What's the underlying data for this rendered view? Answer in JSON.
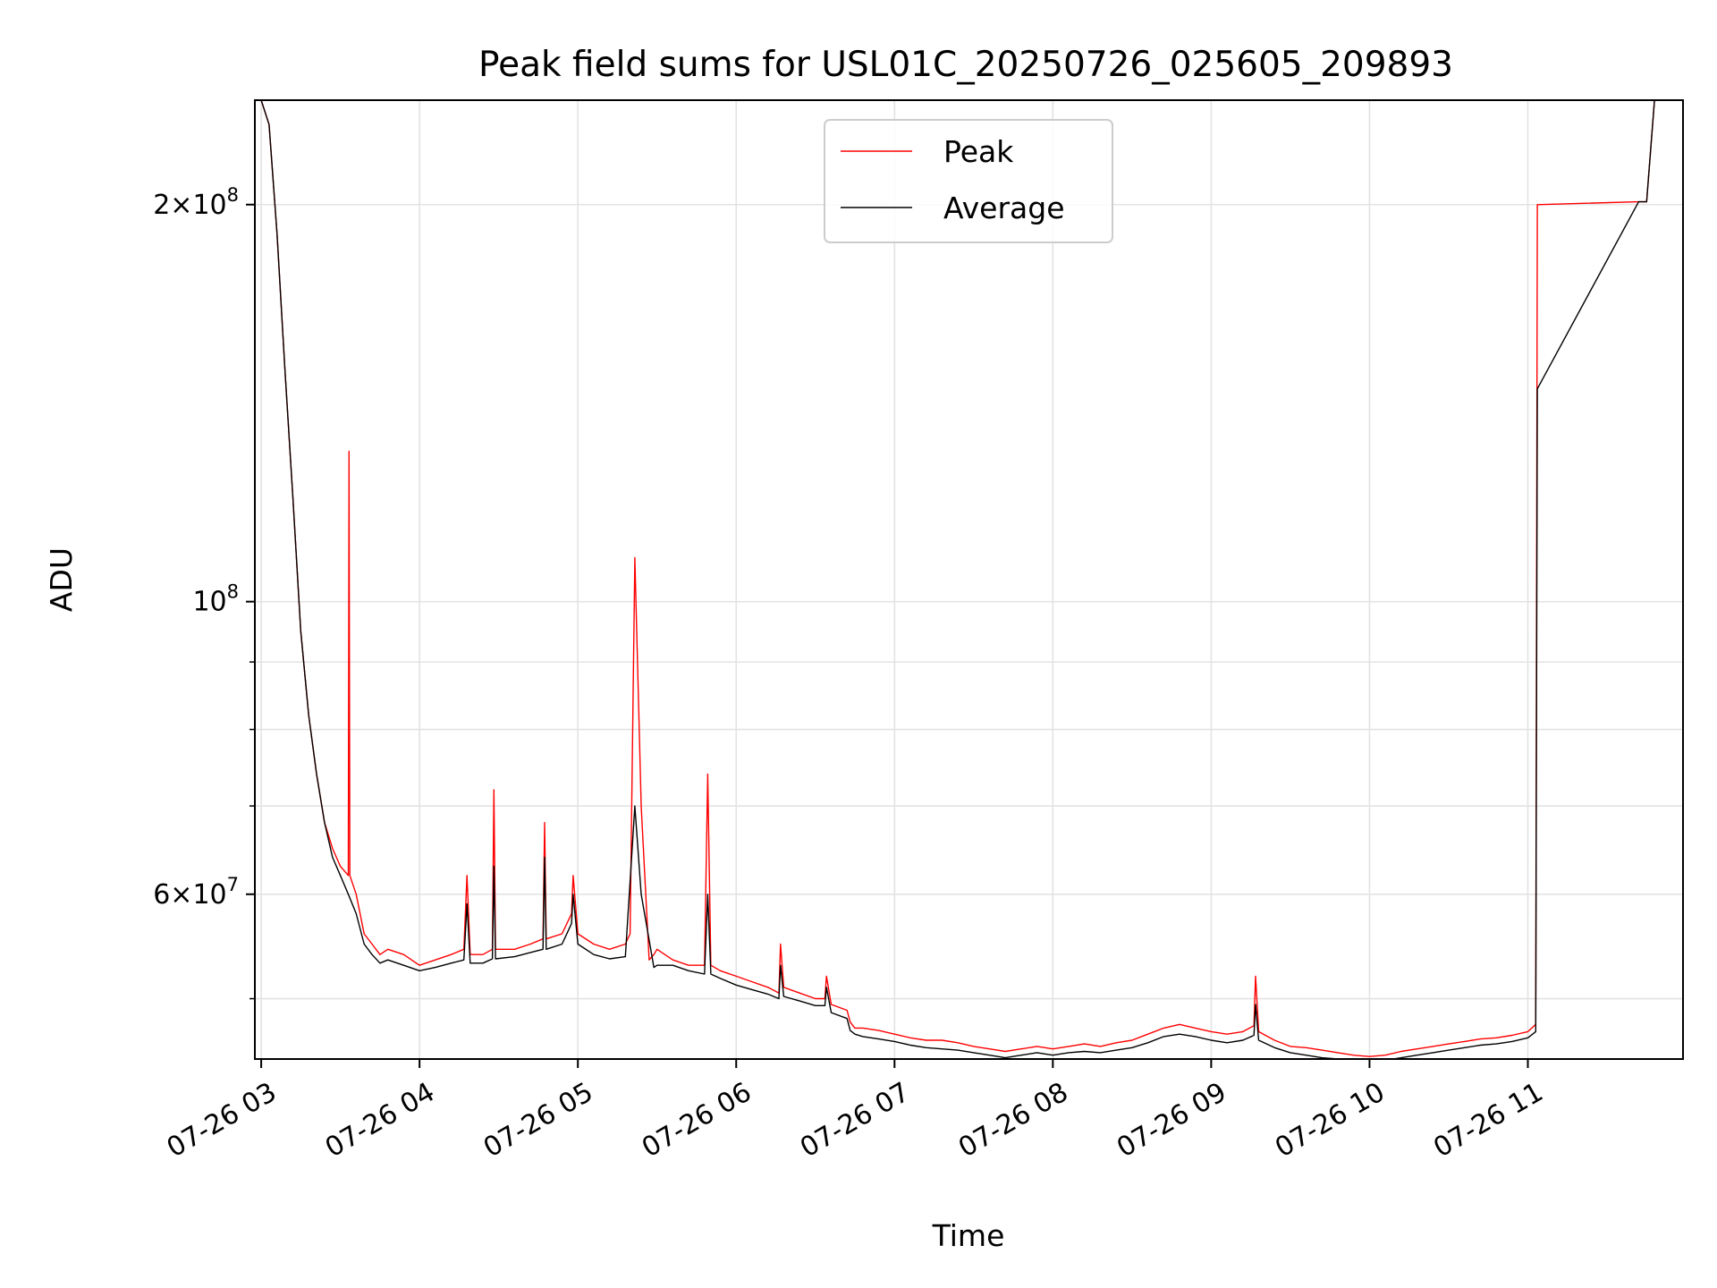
{
  "chart_data": {
    "type": "line",
    "title": "Peak field sums for USL01C_20250726_025605_209893",
    "xlabel": "Time",
    "ylabel": "ADU",
    "x_unit": "hours (clock time on 2025-07-26)",
    "xlim": [
      2.96,
      11.98
    ],
    "ylim": [
      45000000,
      240000000
    ],
    "yscale": "log",
    "grid": true,
    "legend": {
      "position": "upper-center",
      "entries": [
        "Peak",
        "Average"
      ]
    },
    "x_ticks": [
      {
        "value": 3,
        "label": "07-26 03"
      },
      {
        "value": 4,
        "label": "07-26 04"
      },
      {
        "value": 5,
        "label": "07-26 05"
      },
      {
        "value": 6,
        "label": "07-26 06"
      },
      {
        "value": 7,
        "label": "07-26 07"
      },
      {
        "value": 8,
        "label": "07-26 08"
      },
      {
        "value": 9,
        "label": "07-26 09"
      },
      {
        "value": 10,
        "label": "07-26 10"
      },
      {
        "value": 11,
        "label": "07-26 11"
      }
    ],
    "y_major_ticks": [
      {
        "value": 60000000,
        "mantissa": "6",
        "times": "×",
        "base": "10",
        "exp": "7"
      },
      {
        "value": 100000000,
        "mantissa": "",
        "times": "",
        "base": "10",
        "exp": "8"
      },
      {
        "value": 200000000,
        "mantissa": "2",
        "times": "×",
        "base": "10",
        "exp": "8"
      }
    ],
    "y_minor_ticks": [
      50000000,
      70000000,
      80000000,
      90000000,
      300000000
    ],
    "series": [
      {
        "name": "Peak",
        "color": "#ff0000",
        "x": [
          3.0,
          3.05,
          3.1,
          3.15,
          3.2,
          3.25,
          3.3,
          3.35,
          3.4,
          3.45,
          3.5,
          3.55,
          3.555,
          3.56,
          3.6,
          3.65,
          3.7,
          3.75,
          3.8,
          3.9,
          4.0,
          4.1,
          4.2,
          4.28,
          4.3,
          4.32,
          4.4,
          4.46,
          4.47,
          4.48,
          4.6,
          4.7,
          4.78,
          4.79,
          4.8,
          4.9,
          4.96,
          4.97,
          5.0,
          5.1,
          5.2,
          5.3,
          5.33,
          5.36,
          5.4,
          5.45,
          5.48,
          5.5,
          5.6,
          5.7,
          5.8,
          5.82,
          5.84,
          5.9,
          6.0,
          6.1,
          6.2,
          6.27,
          6.28,
          6.3,
          6.4,
          6.5,
          6.56,
          6.57,
          6.6,
          6.7,
          6.72,
          6.75,
          6.8,
          6.9,
          7.0,
          7.1,
          7.2,
          7.3,
          7.4,
          7.5,
          7.6,
          7.7,
          7.8,
          7.9,
          8.0,
          8.1,
          8.2,
          8.3,
          8.4,
          8.5,
          8.6,
          8.7,
          8.8,
          8.9,
          9.0,
          9.1,
          9.2,
          9.27,
          9.28,
          9.3,
          9.4,
          9.5,
          9.6,
          9.7,
          9.8,
          9.9,
          10.0,
          10.1,
          10.2,
          10.3,
          10.4,
          10.5,
          10.6,
          10.7,
          10.8,
          10.9,
          11.0,
          11.05,
          11.06,
          11.7,
          11.75,
          11.8,
          11.85
        ],
        "values": [
          240000000,
          230000000,
          190000000,
          150000000,
          120000000,
          95000000,
          82000000,
          74000000,
          68000000,
          65000000,
          63000000,
          62000000,
          130000000,
          62000000,
          60000000,
          56000000,
          55000000,
          54000000,
          54500000,
          54000000,
          53000000,
          53500000,
          54000000,
          54500000,
          62000000,
          54000000,
          54000000,
          54500000,
          72000000,
          54500000,
          54500000,
          55000000,
          55500000,
          68000000,
          55500000,
          56000000,
          58000000,
          62000000,
          56000000,
          55000000,
          54500000,
          55000000,
          56000000,
          108000000,
          70000000,
          53500000,
          54000000,
          54500000,
          53500000,
          53000000,
          53000000,
          74000000,
          53000000,
          52500000,
          52000000,
          51500000,
          51000000,
          50500000,
          55000000,
          51000000,
          50500000,
          50000000,
          50000000,
          52000000,
          49500000,
          49000000,
          48000000,
          47500000,
          47500000,
          47300000,
          47000000,
          46700000,
          46500000,
          46500000,
          46300000,
          46000000,
          45800000,
          45600000,
          45800000,
          46000000,
          45800000,
          46000000,
          46200000,
          46000000,
          46300000,
          46500000,
          47000000,
          47500000,
          47800000,
          47500000,
          47200000,
          47000000,
          47200000,
          47700000,
          52000000,
          47200000,
          46500000,
          46000000,
          45900000,
          45700000,
          45500000,
          45300000,
          45200000,
          45300000,
          45600000,
          45800000,
          46000000,
          46200000,
          46400000,
          46600000,
          46700000,
          46900000,
          47200000,
          47800000,
          200000000,
          201000000,
          201000000,
          240000000,
          240000000
        ]
      },
      {
        "name": "Average",
        "color": "#000000",
        "x": [
          3.0,
          3.05,
          3.1,
          3.15,
          3.2,
          3.25,
          3.3,
          3.35,
          3.4,
          3.45,
          3.5,
          3.55,
          3.6,
          3.65,
          3.7,
          3.75,
          3.8,
          3.9,
          4.0,
          4.1,
          4.2,
          4.28,
          4.3,
          4.32,
          4.4,
          4.46,
          4.47,
          4.48,
          4.6,
          4.7,
          4.78,
          4.79,
          4.8,
          4.9,
          4.96,
          4.97,
          5.0,
          5.1,
          5.2,
          5.3,
          5.36,
          5.4,
          5.48,
          5.5,
          5.6,
          5.7,
          5.8,
          5.82,
          5.84,
          5.9,
          6.0,
          6.1,
          6.2,
          6.27,
          6.28,
          6.3,
          6.4,
          6.5,
          6.56,
          6.57,
          6.6,
          6.7,
          6.72,
          6.75,
          6.8,
          6.9,
          7.0,
          7.1,
          7.2,
          7.3,
          7.4,
          7.5,
          7.6,
          7.7,
          7.8,
          7.9,
          8.0,
          8.1,
          8.2,
          8.3,
          8.4,
          8.5,
          8.6,
          8.7,
          8.8,
          8.9,
          9.0,
          9.1,
          9.2,
          9.27,
          9.28,
          9.3,
          9.4,
          9.5,
          9.6,
          9.7,
          9.8,
          9.9,
          10.0,
          10.1,
          10.2,
          10.3,
          10.4,
          10.5,
          10.6,
          10.7,
          10.8,
          10.9,
          11.0,
          11.05,
          11.06,
          11.7,
          11.75,
          11.8,
          11.85
        ],
        "values": [
          240000000,
          230000000,
          190000000,
          150000000,
          120000000,
          95000000,
          82000000,
          74000000,
          68000000,
          64000000,
          62000000,
          60000000,
          58000000,
          55000000,
          54000000,
          53200000,
          53500000,
          53000000,
          52500000,
          52800000,
          53200000,
          53500000,
          59000000,
          53200000,
          53200000,
          53600000,
          63000000,
          53600000,
          53800000,
          54200000,
          54500000,
          64000000,
          54500000,
          55000000,
          57000000,
          60000000,
          55000000,
          54000000,
          53600000,
          53800000,
          70000000,
          60000000,
          52800000,
          53000000,
          53000000,
          52500000,
          52200000,
          60000000,
          52200000,
          51800000,
          51200000,
          50800000,
          50400000,
          50000000,
          53000000,
          50200000,
          49800000,
          49400000,
          49400000,
          51000000,
          48800000,
          48300000,
          47300000,
          47000000,
          46800000,
          46600000,
          46400000,
          46100000,
          45900000,
          45800000,
          45700000,
          45500000,
          45300000,
          45100000,
          45300000,
          45500000,
          45300000,
          45500000,
          45600000,
          45500000,
          45700000,
          45900000,
          46300000,
          46800000,
          47000000,
          46800000,
          46500000,
          46300000,
          46500000,
          46900000,
          49500000,
          46500000,
          45900000,
          45500000,
          45300000,
          45100000,
          45000000,
          44900000,
          44800000,
          44900000,
          45100000,
          45300000,
          45500000,
          45700000,
          45900000,
          46100000,
          46200000,
          46400000,
          46700000,
          47200000,
          145000000,
          201000000,
          201000000,
          240000000,
          240000000
        ]
      }
    ]
  }
}
